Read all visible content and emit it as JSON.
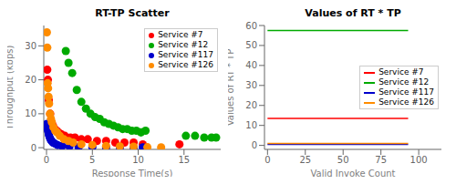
{
  "chart_data": [
    {
      "type": "scatter",
      "title": "RT-TP Scatter",
      "x_label": "Response Time(s)",
      "y_label": "Throughput (kbps)",
      "series": [
        {
          "name": "Service #7",
          "color": "#ff0000",
          "x": [
            0.08,
            0.15,
            0.25,
            0.4,
            0.55,
            0.7,
            0.9,
            1.1,
            1.3,
            1.6,
            2.0,
            2.6,
            3.1,
            3.8,
            4.5,
            5.5,
            6.5,
            7.5,
            8.5,
            9.5,
            10.5,
            14.5
          ],
          "values": [
            23.0,
            20.0,
            14.0,
            10.0,
            7.5,
            6.5,
            5.5,
            5.0,
            4.5,
            4.0,
            3.5,
            3.0,
            3.0,
            2.5,
            2.5,
            2.0,
            2.0,
            1.5,
            1.5,
            1.5,
            1.0,
            1.0
          ]
        },
        {
          "name": "Service #12",
          "color": "#00aa00",
          "x": [
            2.1,
            2.4,
            2.8,
            3.3,
            3.8,
            4.3,
            4.8,
            5.3,
            5.8,
            6.3,
            6.8,
            7.3,
            7.8,
            8.3,
            8.8,
            9.3,
            9.8,
            10.3,
            10.8,
            15.2,
            16.2,
            17.2,
            18.0,
            18.5
          ],
          "values": [
            28.5,
            25.0,
            22.0,
            17.0,
            13.5,
            11.5,
            10.0,
            9.0,
            8.5,
            7.5,
            7.0,
            6.5,
            6.0,
            5.5,
            5.5,
            5.0,
            5.0,
            4.5,
            5.0,
            3.5,
            3.5,
            3.0,
            3.0,
            3.0
          ]
        },
        {
          "name": "Service #117",
          "color": "#0000cc",
          "x": [
            0.04,
            0.08,
            0.12,
            0.18,
            0.25,
            0.35,
            0.45,
            0.55,
            0.7,
            0.9,
            1.2,
            1.7,
            2.5,
            3.5,
            5.0,
            6.5,
            8.0,
            9.5,
            10.5
          ],
          "values": [
            7.0,
            6.5,
            5.5,
            4.8,
            3.8,
            3.0,
            2.4,
            2.0,
            1.5,
            1.2,
            0.8,
            0.5,
            0.35,
            0.2,
            0.15,
            0.1,
            0.1,
            0.08,
            0.1
          ]
        },
        {
          "name": "Service #126",
          "color": "#ff8c00",
          "x": [
            0.04,
            0.08,
            0.12,
            0.17,
            0.22,
            0.28,
            0.38,
            0.48,
            0.58,
            0.75,
            0.95,
            1.15,
            1.45,
            1.9,
            2.4,
            2.9,
            3.8,
            5.0,
            6.5,
            8.0,
            9.5,
            11.0,
            12.5
          ],
          "values": [
            34.0,
            29.5,
            19.0,
            17.5,
            15.0,
            13.0,
            10.0,
            8.5,
            7.5,
            6.0,
            5.0,
            4.5,
            3.5,
            2.5,
            2.0,
            1.5,
            1.0,
            0.8,
            0.5,
            0.4,
            0.3,
            0.15,
            0.1
          ]
        }
      ],
      "xlim": [
        -0.3,
        19
      ],
      "ylim": [
        -0.5,
        36
      ],
      "xticks": [
        0,
        5,
        10,
        15
      ],
      "yticks": [
        0,
        10,
        20,
        30
      ],
      "legend": "upper right",
      "grid": false
    },
    {
      "type": "line",
      "title": "Values of RT * TP",
      "x_label": "Valid Invoke Count",
      "y_label": "Values of RT * TP",
      "x": [
        0,
        93
      ],
      "series": [
        {
          "name": "Service #7",
          "color": "#ff0000",
          "values": [
            13.5,
            13.5
          ]
        },
        {
          "name": "Service #12",
          "color": "#00aa00",
          "values": [
            57.5,
            57.5
          ]
        },
        {
          "name": "Service #117",
          "color": "#0000cc",
          "values": [
            0.5,
            0.5
          ]
        },
        {
          "name": "Service #126",
          "color": "#ff8c00",
          "values": [
            1.0,
            1.0
          ]
        }
      ],
      "xlim": [
        -2,
        115
      ],
      "ylim": [
        -2,
        60
      ],
      "xticks": [
        0,
        25,
        50,
        75,
        100
      ],
      "yticks": [
        0,
        10,
        20,
        30,
        40,
        50,
        60
      ],
      "legend": "center right",
      "grid": false
    }
  ]
}
